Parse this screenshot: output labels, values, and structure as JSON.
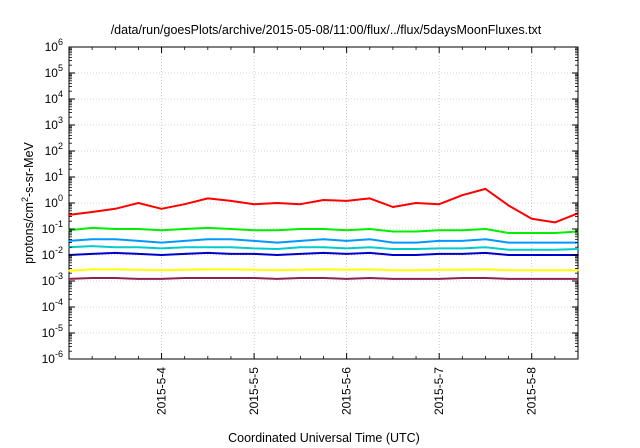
{
  "chart_data": {
    "type": "line",
    "title": "/data/run/goesPlots/archive/2015-05-08/11:00/flux/../flux/5daysMoonFluxes.txt",
    "xlabel": "Coordinated Universal Time (UTC)",
    "ylabel": "protons/cm²-s-sr-MeV",
    "ylabel_parts": [
      "protons/cm",
      "2",
      "-s-sr-MeV"
    ],
    "xlim": [
      "2015-05-03T00:00",
      "2015-05-08T12:00"
    ],
    "ylim": [
      1e-06,
      1000000.0
    ],
    "yscale": "log",
    "grid": true,
    "legend": "none",
    "x_ticks": [
      "2015-5-4",
      "2015-5-5",
      "2015-5-6",
      "2015-5-7",
      "2015-5-8"
    ],
    "y_ticks": [
      {
        "base": "10",
        "exp": "-6"
      },
      {
        "base": "10",
        "exp": "-5"
      },
      {
        "base": "10",
        "exp": "-4"
      },
      {
        "base": "10",
        "exp": "-3"
      },
      {
        "base": "10",
        "exp": "-2"
      },
      {
        "base": "10",
        "exp": "-1"
      },
      {
        "base": "10",
        "exp": "0"
      },
      {
        "base": "10",
        "exp": "1"
      },
      {
        "base": "10",
        "exp": "2"
      },
      {
        "base": "10",
        "exp": "3"
      },
      {
        "base": "10",
        "exp": "4"
      },
      {
        "base": "10",
        "exp": "5"
      },
      {
        "base": "10",
        "exp": "6"
      }
    ],
    "x_dates": [
      "2015-05-03T00:00",
      "2015-05-03T06:00",
      "2015-05-03T12:00",
      "2015-05-03T18:00",
      "2015-05-04T00:00",
      "2015-05-04T06:00",
      "2015-05-04T12:00",
      "2015-05-04T18:00",
      "2015-05-05T00:00",
      "2015-05-05T06:00",
      "2015-05-05T12:00",
      "2015-05-05T18:00",
      "2015-05-06T00:00",
      "2015-05-06T06:00",
      "2015-05-06T12:00",
      "2015-05-06T18:00",
      "2015-05-07T00:00",
      "2015-05-07T06:00",
      "2015-05-07T12:00",
      "2015-05-07T18:00",
      "2015-05-08T00:00",
      "2015-05-08T06:00",
      "2015-05-08T12:00"
    ],
    "series": [
      {
        "color": "#ff0000",
        "values": [
          0.35,
          0.45,
          0.6,
          1.0,
          0.6,
          0.9,
          1.5,
          1.2,
          0.9,
          1.0,
          0.9,
          1.3,
          1.2,
          1.5,
          0.7,
          1.0,
          0.9,
          2.0,
          3.5,
          0.8,
          0.25,
          0.18,
          0.4
        ]
      },
      {
        "color": "#00ee00",
        "values": [
          0.09,
          0.11,
          0.1,
          0.1,
          0.09,
          0.1,
          0.11,
          0.1,
          0.09,
          0.09,
          0.1,
          0.1,
          0.09,
          0.1,
          0.08,
          0.08,
          0.09,
          0.09,
          0.1,
          0.07,
          0.07,
          0.07,
          0.08
        ]
      },
      {
        "color": "#0099ff",
        "values": [
          0.035,
          0.04,
          0.04,
          0.035,
          0.03,
          0.035,
          0.04,
          0.04,
          0.035,
          0.03,
          0.035,
          0.04,
          0.035,
          0.04,
          0.03,
          0.03,
          0.035,
          0.035,
          0.04,
          0.03,
          0.03,
          0.03,
          0.03
        ]
      },
      {
        "color": "#00cccc",
        "values": [
          0.02,
          0.022,
          0.02,
          0.02,
          0.018,
          0.02,
          0.02,
          0.02,
          0.018,
          0.017,
          0.02,
          0.02,
          0.018,
          0.02,
          0.017,
          0.017,
          0.018,
          0.018,
          0.02,
          0.016,
          0.016,
          0.016,
          0.017
        ]
      },
      {
        "color": "#0000cc",
        "values": [
          0.01,
          0.011,
          0.012,
          0.011,
          0.01,
          0.011,
          0.012,
          0.011,
          0.011,
          0.01,
          0.011,
          0.012,
          0.011,
          0.012,
          0.01,
          0.01,
          0.011,
          0.011,
          0.012,
          0.01,
          0.01,
          0.01,
          0.01
        ]
      },
      {
        "color": "#ffff00",
        "values": [
          0.0025,
          0.0028,
          0.0028,
          0.0027,
          0.0026,
          0.0027,
          0.0028,
          0.0028,
          0.0027,
          0.0026,
          0.0027,
          0.0028,
          0.0027,
          0.0028,
          0.0026,
          0.0026,
          0.0027,
          0.0027,
          0.0028,
          0.0026,
          0.0026,
          0.0026,
          0.0026
        ]
      },
      {
        "color": "#8b2252",
        "values": [
          0.0012,
          0.0013,
          0.0013,
          0.0012,
          0.0012,
          0.0013,
          0.0013,
          0.0013,
          0.0013,
          0.0012,
          0.0013,
          0.0013,
          0.0012,
          0.0013,
          0.0012,
          0.0012,
          0.0012,
          0.0013,
          0.0013,
          0.0012,
          0.0012,
          0.0012,
          0.0012
        ]
      }
    ]
  }
}
